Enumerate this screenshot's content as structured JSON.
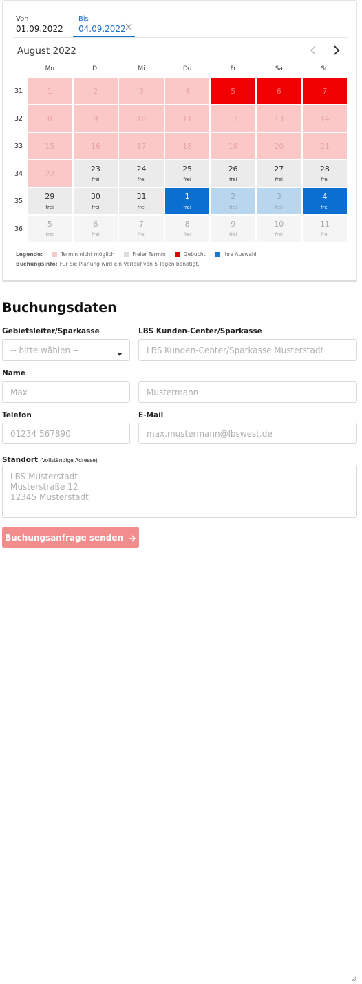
{
  "date_range": {
    "from_label": "Von",
    "from_value": "01.09.2022",
    "to_label": "Bis",
    "to_value": "04.09.2022"
  },
  "calendar": {
    "month": "August 2022",
    "weekdays": [
      "Mo",
      "Di",
      "Mi",
      "Do",
      "Fr",
      "Sa",
      "So"
    ],
    "weeks": [
      {
        "number": "31",
        "days": [
          {
            "day": "1",
            "status": "blocked"
          },
          {
            "day": "2",
            "status": "blocked"
          },
          {
            "day": "3",
            "status": "blocked"
          },
          {
            "day": "4",
            "status": "blocked"
          },
          {
            "day": "5",
            "status": "booked"
          },
          {
            "day": "6",
            "status": "booked"
          },
          {
            "day": "7",
            "status": "booked"
          }
        ]
      },
      {
        "number": "32",
        "days": [
          {
            "day": "8",
            "status": "blocked"
          },
          {
            "day": "9",
            "status": "blocked"
          },
          {
            "day": "10",
            "status": "blocked"
          },
          {
            "day": "11",
            "status": "blocked"
          },
          {
            "day": "12",
            "status": "blocked"
          },
          {
            "day": "13",
            "status": "blocked"
          },
          {
            "day": "14",
            "status": "blocked"
          }
        ]
      },
      {
        "number": "33",
        "days": [
          {
            "day": "15",
            "status": "blocked"
          },
          {
            "day": "16",
            "status": "blocked"
          },
          {
            "day": "17",
            "status": "blocked"
          },
          {
            "day": "18",
            "status": "blocked"
          },
          {
            "day": "19",
            "status": "blocked"
          },
          {
            "day": "20",
            "status": "blocked"
          },
          {
            "day": "21",
            "status": "blocked"
          }
        ]
      },
      {
        "number": "34",
        "days": [
          {
            "day": "22",
            "status": "blocked"
          },
          {
            "day": "23",
            "status": "free",
            "sub": "frei"
          },
          {
            "day": "24",
            "status": "free",
            "sub": "frei"
          },
          {
            "day": "25",
            "status": "free",
            "sub": "frei"
          },
          {
            "day": "26",
            "status": "free",
            "sub": "frei"
          },
          {
            "day": "27",
            "status": "free",
            "sub": "frei"
          },
          {
            "day": "28",
            "status": "free",
            "sub": "frei"
          }
        ]
      },
      {
        "number": "35",
        "days": [
          {
            "day": "29",
            "status": "free",
            "sub": "frei"
          },
          {
            "day": "30",
            "status": "free",
            "sub": "frei"
          },
          {
            "day": "31",
            "status": "free",
            "sub": "frei"
          },
          {
            "day": "1",
            "status": "selected",
            "sub": "frei"
          },
          {
            "day": "2",
            "status": "range",
            "sub": "frei"
          },
          {
            "day": "3",
            "status": "range",
            "sub": "frei"
          },
          {
            "day": "4",
            "status": "selected",
            "sub": "frei"
          }
        ]
      },
      {
        "number": "36",
        "days": [
          {
            "day": "5",
            "status": "disabled",
            "sub": "frei"
          },
          {
            "day": "6",
            "status": "disabled",
            "sub": "frei"
          },
          {
            "day": "7",
            "status": "disabled",
            "sub": "frei"
          },
          {
            "day": "8",
            "status": "disabled",
            "sub": "frei"
          },
          {
            "day": "9",
            "status": "disabled",
            "sub": "frei"
          },
          {
            "day": "10",
            "status": "disabled",
            "sub": "frei"
          },
          {
            "day": "11",
            "status": "disabled",
            "sub": "frei"
          }
        ]
      }
    ],
    "legend_title": "Legende:",
    "legend": [
      {
        "label": "Termin nicht möglich",
        "color": "#fbc8c8"
      },
      {
        "label": "Freier Termin",
        "color": "#dcdcdc"
      },
      {
        "label": "Gebucht",
        "color": "#e00000"
      },
      {
        "label": "Ihre Auswahl",
        "color": "#1a73d0"
      }
    ],
    "info_title": "Buchungsinfo:",
    "info_text": "Für die Planung wird ein Vorlauf von 5 Tagen benötigt."
  },
  "form": {
    "title": "Buchungsdaten",
    "region_label": "Gebietsleiter/Sparkasse",
    "region_placeholder": "-- bitte wählen --",
    "center_label": "LBS Kunden-Center/Sparkasse",
    "center_placeholder": "LBS Kunden-Center/Sparkasse Musterstadt",
    "name_label": "Name",
    "first_name_placeholder": "Max",
    "last_name_placeholder": "Mustermann",
    "phone_label": "Telefon",
    "phone_placeholder": "01234 567890",
    "email_label": "E-Mail",
    "email_placeholder": "max.mustermann@lbswest.de",
    "location_label": "Standort",
    "location_hint": "(Vollständige Adresse)",
    "location_placeholder": [
      "LBS Musterstadt",
      "Musterstraße 12",
      "12345 Musterstadt"
    ],
    "submit": "Buchungsanfrage senden"
  }
}
